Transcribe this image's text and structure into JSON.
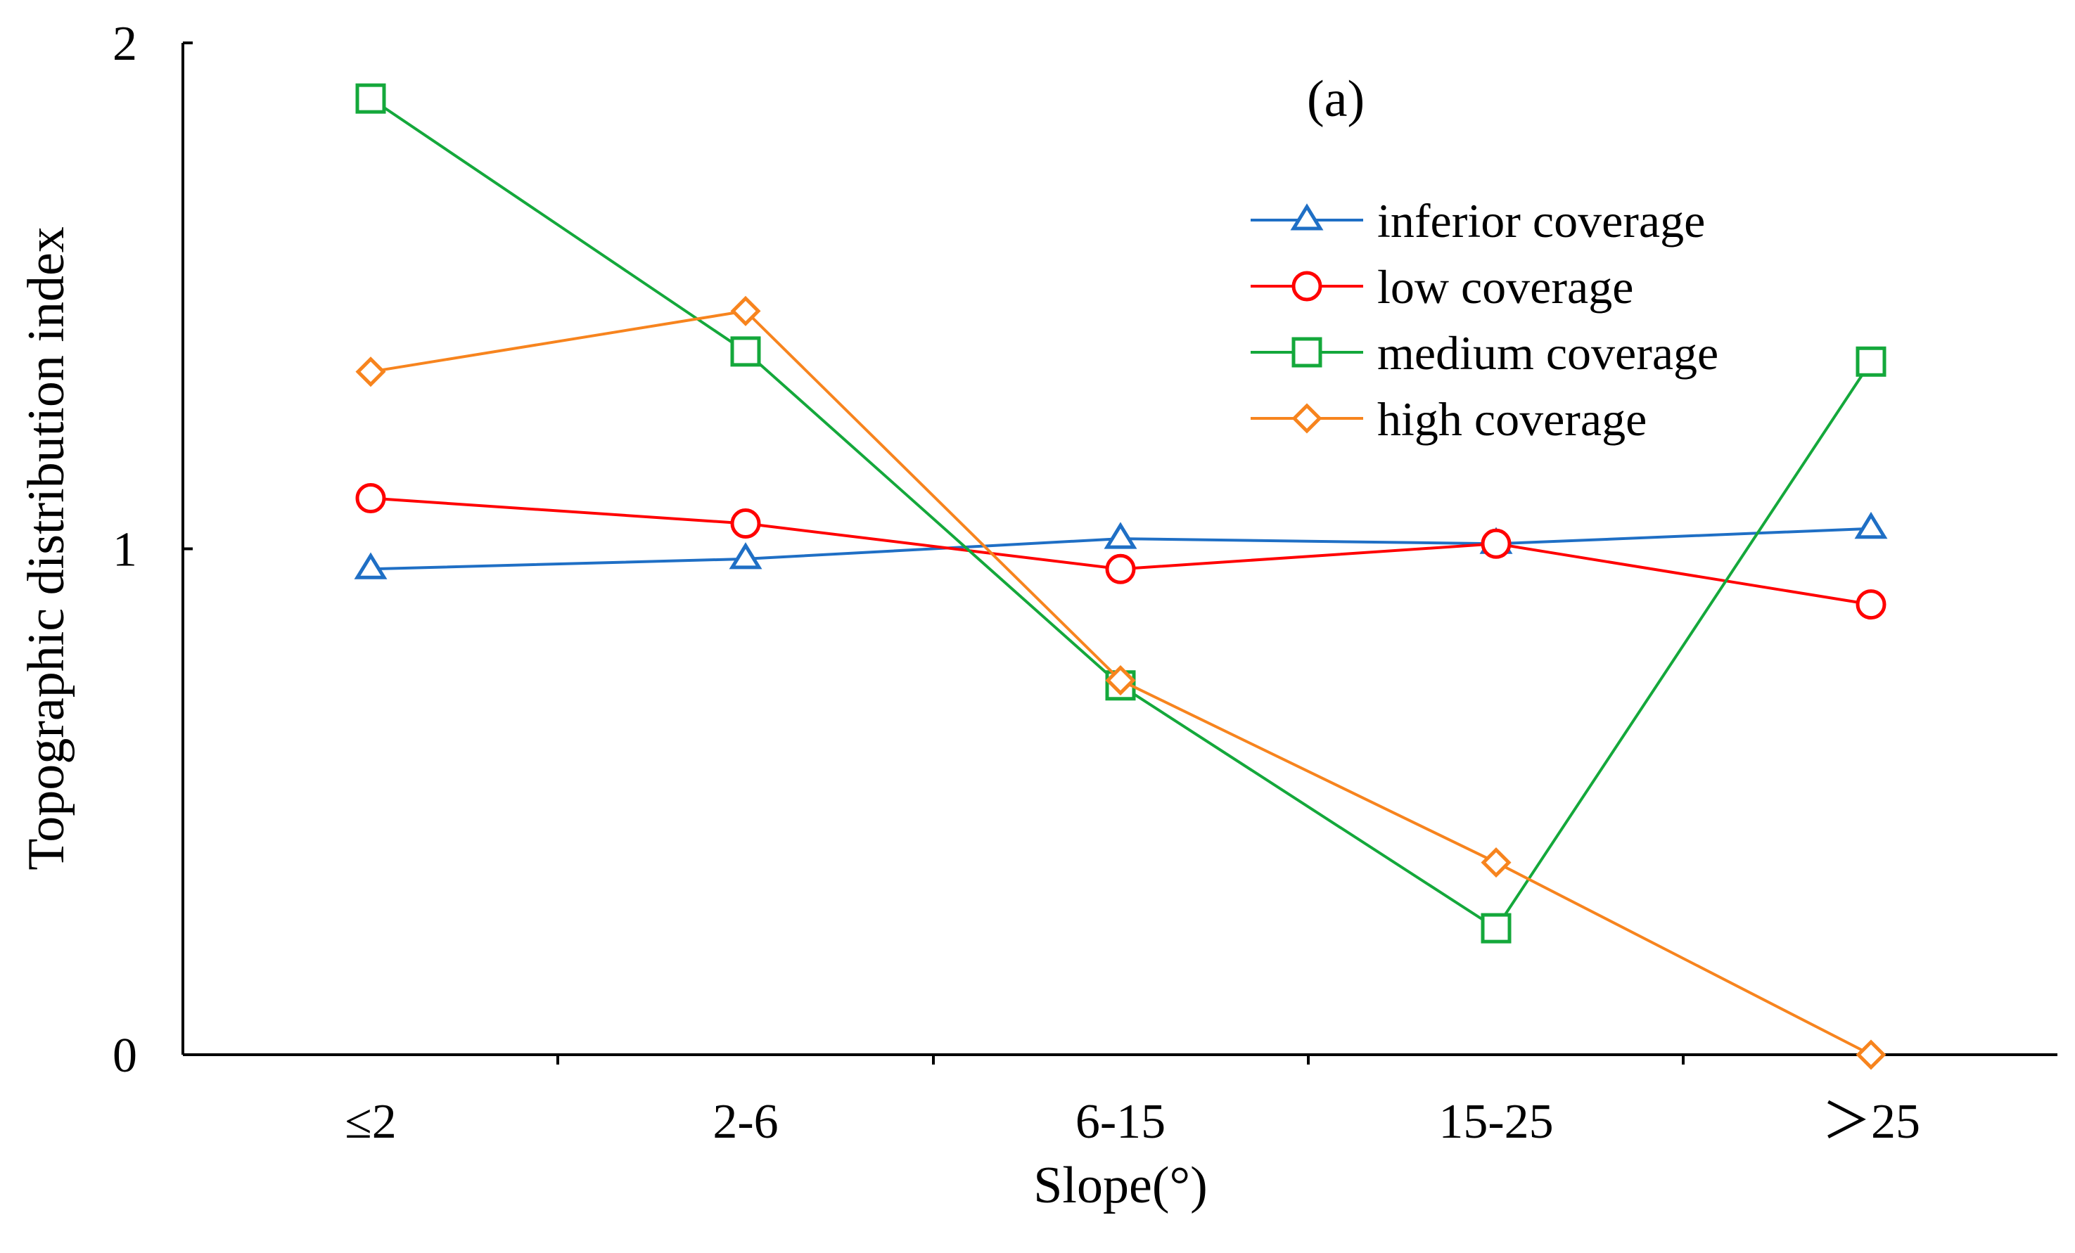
{
  "chart_data": {
    "type": "line",
    "panel_label": "(a)",
    "xlabel": "Slope(°)",
    "ylabel": "Topographic distribution index",
    "categories": [
      "≤2",
      "2-6",
      "6-15",
      "15-25",
      "＞25"
    ],
    "ylim": [
      0,
      2
    ],
    "yticks": [
      "0",
      "1",
      "2"
    ],
    "legend_position": "top-right",
    "grid": false,
    "series": [
      {
        "name": "inferior coverage",
        "color": "#1f6fc5",
        "marker": "triangle",
        "values": [
          0.96,
          0.98,
          1.02,
          1.01,
          1.04
        ]
      },
      {
        "name": "low coverage",
        "color": "#ff0000",
        "marker": "circle",
        "values": [
          1.1,
          1.05,
          0.96,
          1.01,
          0.89
        ]
      },
      {
        "name": "medium coverage",
        "color": "#14a83b",
        "marker": "square",
        "values": [
          1.89,
          1.39,
          0.73,
          0.25,
          1.37
        ]
      },
      {
        "name": "high coverage",
        "color": "#f7841e",
        "marker": "diamond",
        "values": [
          1.35,
          1.47,
          0.74,
          0.38,
          0.0
        ]
      }
    ]
  }
}
